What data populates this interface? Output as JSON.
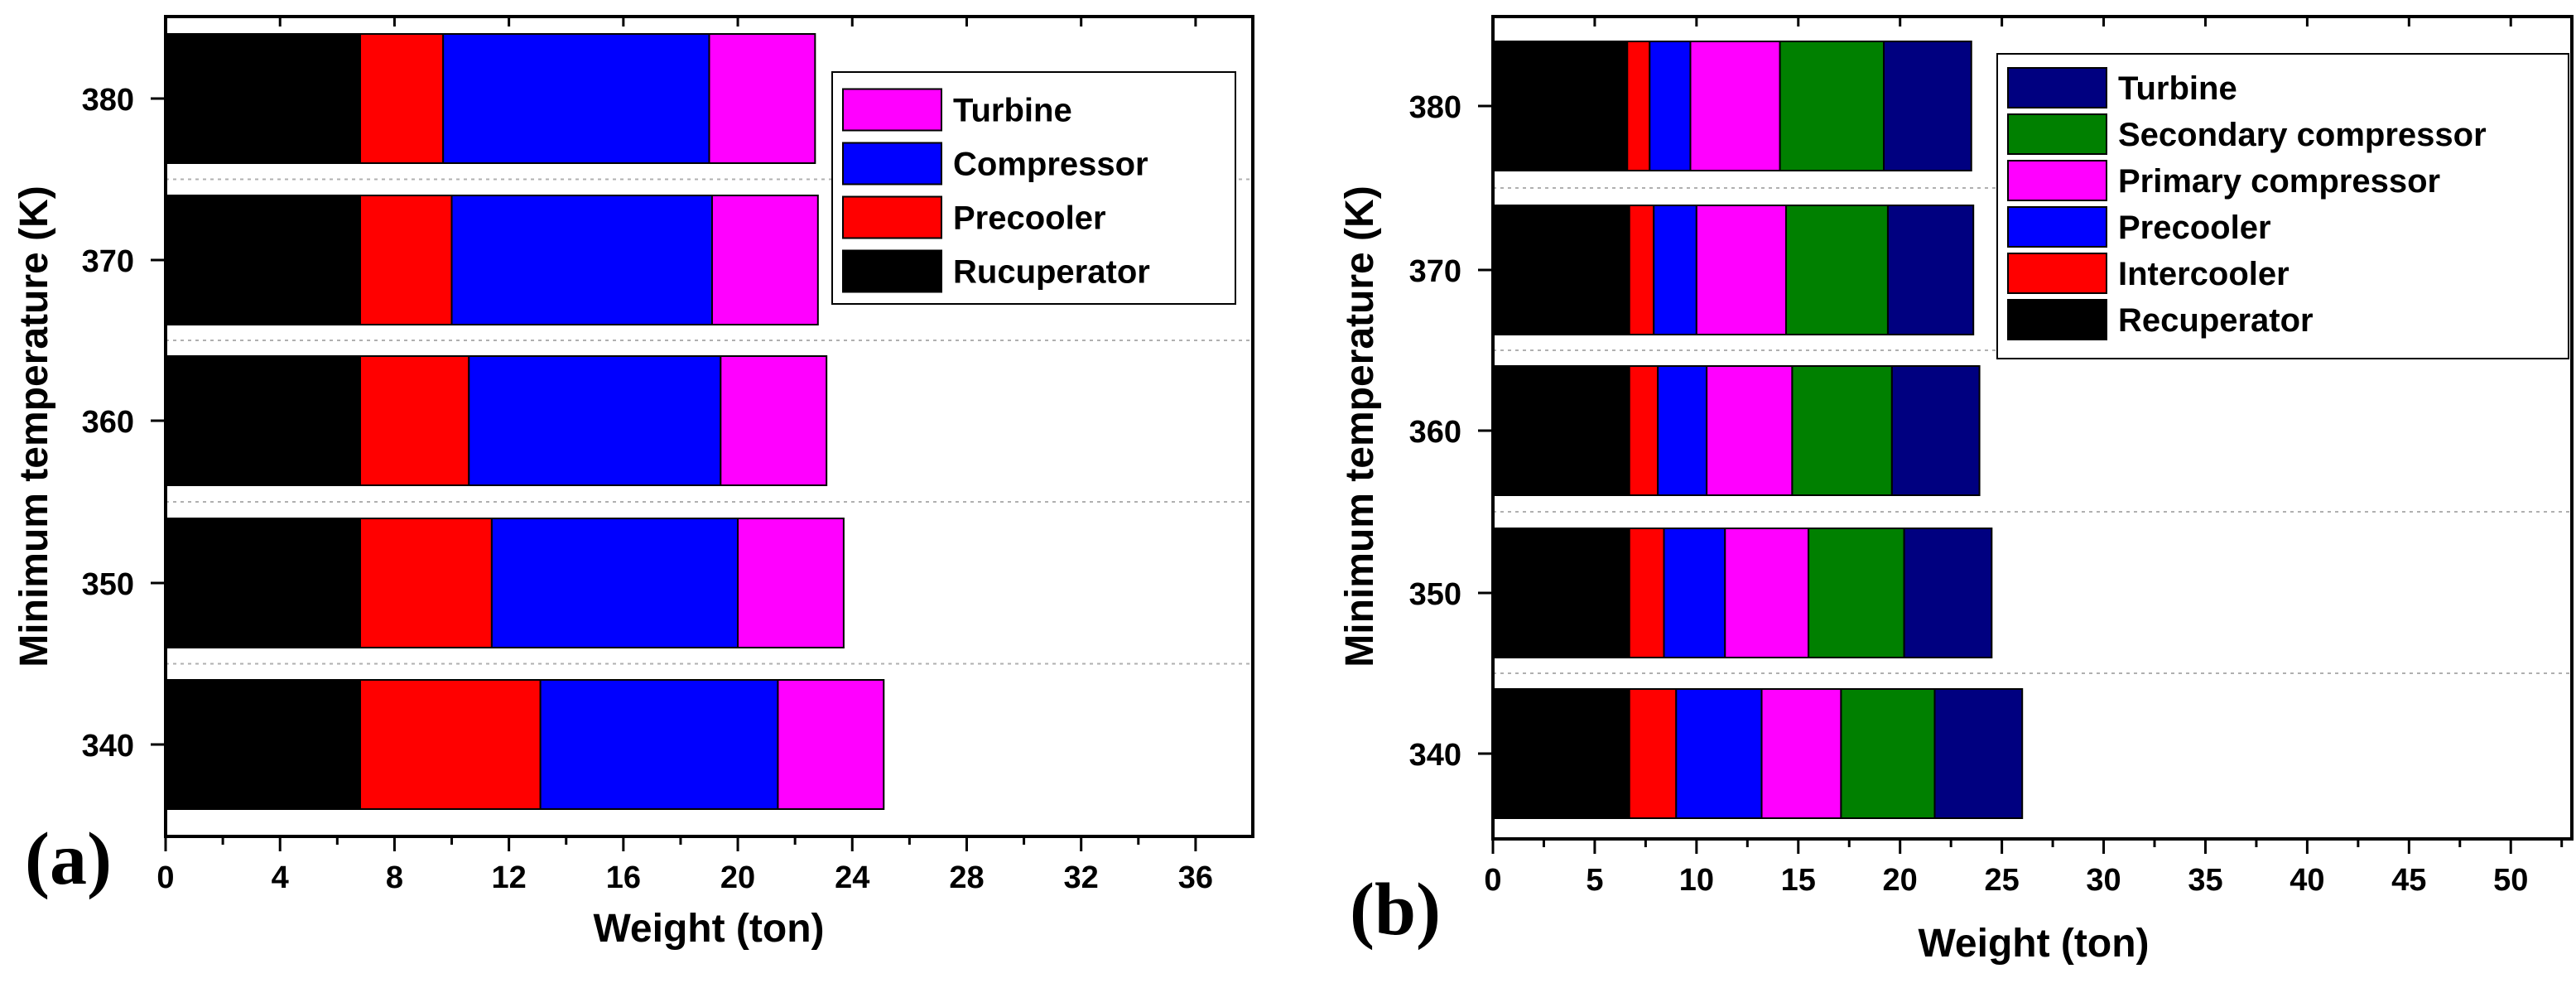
{
  "chart_data": [
    {
      "type": "bar",
      "orientation": "horizontal",
      "stacked": true,
      "panel_label": "(a)",
      "xlabel": "Weight (ton)",
      "ylabel": "Minimum temperature (K)",
      "xlim": [
        0,
        38
      ],
      "xticks": [
        "0",
        "4",
        "8",
        "12",
        "16",
        "20",
        "24",
        "28",
        "32",
        "36"
      ],
      "xtick_values": [
        0,
        4,
        8,
        12,
        16,
        20,
        24,
        28,
        32,
        36
      ],
      "categories": [
        "340",
        "350",
        "360",
        "370",
        "380"
      ],
      "legend_position": "top-right",
      "series": [
        {
          "name": "Rucuperator",
          "color": "#000000",
          "values": [
            6.8,
            6.8,
            6.8,
            6.8,
            6.8
          ]
        },
        {
          "name": "Precooler",
          "color": "#ff0000",
          "values": [
            6.3,
            4.6,
            3.8,
            3.2,
            2.9
          ]
        },
        {
          "name": "Compressor",
          "color": "#0000ff",
          "values": [
            8.3,
            8.6,
            8.8,
            9.1,
            9.3
          ]
        },
        {
          "name": "Turbine",
          "color": "#ff00ff",
          "values": [
            3.7,
            3.7,
            3.7,
            3.7,
            3.7
          ]
        }
      ],
      "legend_order": [
        "Turbine",
        "Compressor",
        "Precooler",
        "Rucuperator"
      ]
    },
    {
      "type": "bar",
      "orientation": "horizontal",
      "stacked": true,
      "panel_label": "(b)",
      "xlabel": "Weight (ton)",
      "ylabel": "Minimum temperature (K)",
      "xlim": [
        0,
        53
      ],
      "xticks": [
        "0",
        "5",
        "10",
        "15",
        "20",
        "25",
        "30",
        "35",
        "40",
        "45",
        "50"
      ],
      "xtick_values": [
        0,
        5,
        10,
        15,
        20,
        25,
        30,
        35,
        40,
        45,
        50
      ],
      "categories": [
        "340",
        "350",
        "360",
        "370",
        "380"
      ],
      "legend_position": "top-right",
      "series": [
        {
          "name": "Recuperator",
          "color": "#000000",
          "values": [
            6.7,
            6.7,
            6.7,
            6.7,
            6.6
          ]
        },
        {
          "name": "Intercooler",
          "color": "#ff0000",
          "values": [
            2.3,
            1.7,
            1.4,
            1.2,
            1.1
          ]
        },
        {
          "name": "Precooler",
          "color": "#0000ff",
          "values": [
            4.2,
            3.0,
            2.4,
            2.1,
            2.0
          ]
        },
        {
          "name": "Primary compressor",
          "color": "#ff00ff",
          "values": [
            3.9,
            4.1,
            4.2,
            4.4,
            4.4
          ]
        },
        {
          "name": "Secondary compressor",
          "color": "#008000",
          "values": [
            4.6,
            4.7,
            4.9,
            5.0,
            5.1
          ]
        },
        {
          "name": "Turbine",
          "color": "#000080",
          "values": [
            4.3,
            4.3,
            4.3,
            4.2,
            4.3
          ]
        }
      ],
      "legend_order": [
        "Turbine",
        "Secondary compressor",
        "Primary compressor",
        "Precooler",
        "Intercooler",
        "Recuperator"
      ]
    }
  ]
}
